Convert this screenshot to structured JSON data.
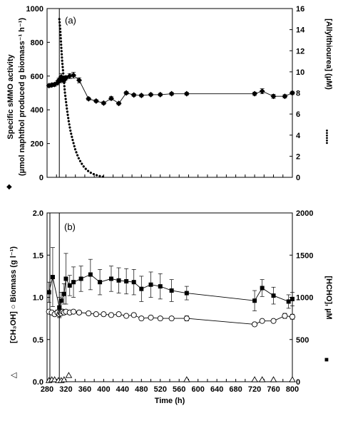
{
  "chart_data": [
    {
      "type": "line",
      "panel_label": "(a)",
      "x_range": [
        280,
        800
      ],
      "xticks": [
        280,
        300,
        320,
        340,
        360,
        380,
        400,
        420,
        440,
        460,
        480,
        500,
        520,
        540,
        560,
        580,
        600,
        620,
        640,
        660,
        680,
        700,
        720,
        740,
        760,
        780,
        800
      ],
      "ylabel_left": "Specific sMMO activity",
      "ylabel_left_2": "(µmol naphthol produced g biomass⁻¹ h⁻¹)",
      "ylabel_left_marker": "◆",
      "ylim_left": [
        0,
        1000
      ],
      "yticks_left": [
        0,
        200,
        400,
        600,
        800,
        1000
      ],
      "ylabel_right": "[Allylthiourea]  (µM)",
      "ylabel_right_marker": "••••••",
      "ylim_right": [
        0,
        16
      ],
      "yticks_right": [
        0,
        2,
        4,
        6,
        8,
        10,
        12,
        14,
        16
      ],
      "vertical_line_x": 306,
      "series": [
        {
          "axis": "left",
          "marker": "diamond",
          "style": "solid",
          "x": [
            284,
            290,
            296,
            302,
            305,
            308,
            310,
            312,
            316,
            320,
            328,
            336,
            348,
            368,
            384,
            400,
            416,
            432,
            448,
            464,
            480,
            500,
            520,
            544,
            576,
            720,
            736,
            760,
            784,
            800
          ],
          "y": [
            543,
            547,
            550,
            560,
            575,
            575,
            595,
            580,
            575,
            590,
            600,
            605,
            575,
            465,
            452,
            440,
            468,
            438,
            500,
            488,
            485,
            490,
            490,
            495,
            495,
            495,
            510,
            480,
            480,
            500
          ],
          "yerr": [
            10,
            10,
            10,
            12,
            12,
            15,
            20,
            15,
            12,
            12,
            15,
            18,
            15,
            8,
            8,
            8,
            10,
            8,
            8,
            8,
            8,
            8,
            8,
            8,
            8,
            10,
            15,
            12,
            10,
            10
          ]
        },
        {
          "axis": "right",
          "marker": "none",
          "style": "dotted",
          "x": [
            306,
            308,
            310,
            312,
            315,
            318,
            322,
            326,
            330,
            335,
            340,
            346,
            352,
            358,
            364,
            370,
            376,
            382,
            388,
            394,
            400
          ],
          "y": [
            15.0,
            14.0,
            12.5,
            11.0,
            9.5,
            8.0,
            6.5,
            5.3,
            4.3,
            3.4,
            2.6,
            1.9,
            1.4,
            1.0,
            0.7,
            0.5,
            0.35,
            0.25,
            0.15,
            0.1,
            0.05
          ]
        }
      ]
    },
    {
      "type": "line",
      "panel_label": "(b)",
      "x_range": [
        280,
        800
      ],
      "xticks": [
        280,
        300,
        320,
        340,
        360,
        380,
        400,
        420,
        440,
        460,
        480,
        500,
        520,
        540,
        560,
        580,
        600,
        620,
        640,
        660,
        680,
        700,
        720,
        740,
        760,
        780,
        800
      ],
      "xtick_labels": [
        "280",
        "320",
        "360",
        "400",
        "440",
        "480",
        "520",
        "560",
        "600",
        "640",
        "680",
        "720",
        "760",
        "800"
      ],
      "xlabel": "Time (h)",
      "ylabel_left": "[CH₃OH]  ○ Biomass (g l⁻¹)",
      "ylabel_left_marker": "△",
      "ylim_left": [
        0,
        2.0
      ],
      "yticks_left": [
        0.0,
        0.5,
        1.0,
        1.5,
        2.0
      ],
      "ylabel_right": "[HCHO], µM",
      "ylabel_right_marker": "■",
      "ylim_right": [
        0,
        2000
      ],
      "yticks_right": [
        0,
        500,
        1000,
        1500,
        2000
      ],
      "vertical_lines_x": [
        286,
        306
      ],
      "series": [
        {
          "axis": "left",
          "marker": "open-circle",
          "x": [
            284,
            290,
            296,
            302,
            306,
            308,
            310,
            313,
            316,
            320,
            328,
            336,
            348,
            368,
            384,
            400,
            416,
            432,
            448,
            464,
            480,
            500,
            520,
            544,
            576,
            720,
            736,
            760,
            784,
            800
          ],
          "y": [
            0.83,
            0.82,
            0.8,
            0.82,
            0.8,
            0.82,
            0.81,
            0.83,
            0.82,
            0.83,
            0.82,
            0.83,
            0.82,
            0.81,
            0.8,
            0.8,
            0.79,
            0.8,
            0.78,
            0.79,
            0.75,
            0.76,
            0.75,
            0.75,
            0.75,
            0.68,
            0.72,
            0.72,
            0.78,
            0.77
          ],
          "yerr": [
            0.02,
            0.02,
            0.02,
            0.03,
            0.04,
            0.03,
            0.02,
            0.02,
            0.02,
            0.02,
            0.02,
            0.02,
            0.02,
            0.02,
            0.02,
            0.02,
            0.02,
            0.02,
            0.02,
            0.02,
            0.02,
            0.02,
            0.02,
            0.02,
            0.03,
            0.02,
            0.02,
            0.02,
            0.03,
            0.03
          ]
        },
        {
          "axis": "left",
          "marker": "open-triangle",
          "x": [
            284,
            290,
            296,
            304,
            310,
            316,
            326,
            576,
            720,
            736,
            760,
            800
          ],
          "y": [
            0.01,
            0.02,
            0.02,
            0.01,
            0.01,
            0.02,
            0.07,
            0.02,
            0.02,
            0.02,
            0.02,
            0.02
          ]
        },
        {
          "axis": "right",
          "marker": "filled-square",
          "x": [
            284,
            292,
            306,
            310,
            316,
            320,
            328,
            336,
            352,
            372,
            392,
            416,
            432,
            448,
            464,
            480,
            500,
            520,
            544,
            576,
            720,
            736,
            760,
            792,
            800
          ],
          "y": [
            1060,
            1240,
            880,
            960,
            1040,
            1220,
            1140,
            1180,
            1220,
            1270,
            1180,
            1220,
            1200,
            1190,
            1180,
            1100,
            1150,
            1130,
            1080,
            1050,
            960,
            1110,
            1020,
            950,
            980
          ],
          "yerr": [
            120,
            350,
            120,
            100,
            120,
            300,
            120,
            180,
            150,
            180,
            150,
            150,
            150,
            150,
            150,
            150,
            150,
            150,
            130,
            80,
            120,
            100,
            100,
            80,
            80
          ]
        }
      ]
    }
  ]
}
